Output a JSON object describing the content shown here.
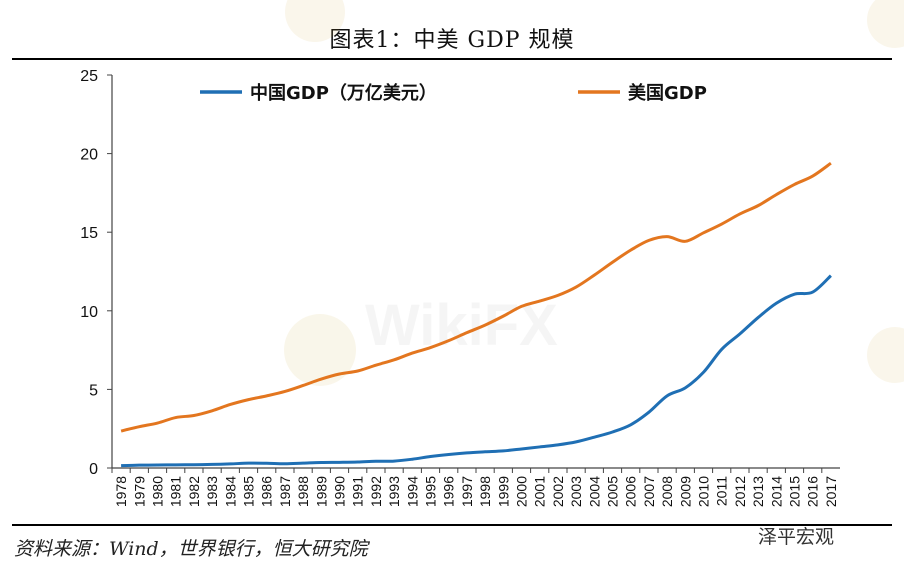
{
  "header": {
    "title": "图表1：中美 GDP 规模"
  },
  "footer": {
    "source": "资料来源：Wind，世界银行，恒大研究院",
    "brand": "泽平宏观"
  },
  "watermark": {
    "text": "WikiFX"
  },
  "colors": {
    "china": "#1f6fb4",
    "usa": "#e3761f"
  },
  "chart_data": {
    "type": "line",
    "title": "",
    "xlabel": "",
    "ylabel": "",
    "ylim": [
      0,
      25
    ],
    "yticks": [
      "0",
      "5",
      "10",
      "15",
      "20",
      "25"
    ],
    "grid": false,
    "legend_position": "top",
    "x": [
      "1978",
      "1979",
      "1980",
      "1981",
      "1982",
      "1983",
      "1984",
      "1985",
      "1986",
      "1987",
      "1988",
      "1989",
      "1990",
      "1991",
      "1992",
      "1993",
      "1994",
      "1995",
      "1996",
      "1997",
      "1998",
      "1999",
      "2000",
      "2001",
      "2002",
      "2003",
      "2004",
      "2005",
      "2006",
      "2007",
      "2008",
      "2009",
      "2010",
      "2011",
      "2012",
      "2013",
      "2014",
      "2015",
      "2016",
      "2017"
    ],
    "series": [
      {
        "name": "中国GDP（万亿美元）",
        "values": [
          0.15,
          0.18,
          0.19,
          0.2,
          0.21,
          0.23,
          0.26,
          0.31,
          0.3,
          0.27,
          0.31,
          0.35,
          0.36,
          0.38,
          0.43,
          0.44,
          0.56,
          0.73,
          0.86,
          0.96,
          1.03,
          1.09,
          1.21,
          1.34,
          1.47,
          1.66,
          1.96,
          2.29,
          2.75,
          3.55,
          4.59,
          5.1,
          6.09,
          7.55,
          8.53,
          9.57,
          10.48,
          11.06,
          11.19,
          12.24
        ]
      },
      {
        "name": "美国GDP",
        "values": [
          2.35,
          2.63,
          2.86,
          3.21,
          3.34,
          3.64,
          4.04,
          4.35,
          4.59,
          4.87,
          5.25,
          5.66,
          5.98,
          6.17,
          6.54,
          6.88,
          7.31,
          7.66,
          8.1,
          8.61,
          9.09,
          9.66,
          10.28,
          10.62,
          10.98,
          11.51,
          12.27,
          13.09,
          13.86,
          14.48,
          14.72,
          14.42,
          14.96,
          15.52,
          16.16,
          16.69,
          17.39,
          18.04,
          18.57,
          19.39
        ]
      }
    ]
  }
}
